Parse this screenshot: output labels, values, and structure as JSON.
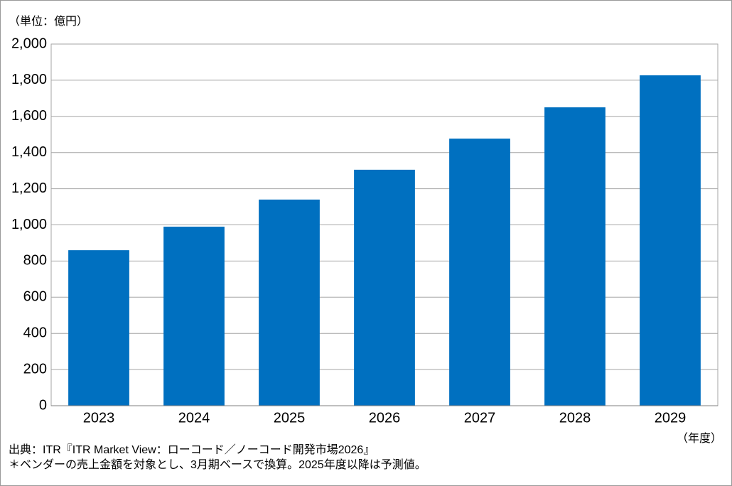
{
  "chart_data": {
    "type": "bar",
    "unit_label": "（単位：億円）",
    "x_unit_label": "（年度）",
    "notes": [
      "出典：ITR『ITR Market View：ローコード／ノーコード開発市場2026』",
      "＊ベンダーの売上金額を対象とし、3月期ベースで換算。2025年度以降は予測値。"
    ],
    "categories": [
      "2023",
      "2024",
      "2025",
      "2026",
      "2027",
      "2028",
      "2029"
    ],
    "values": [
      860,
      990,
      1140,
      1305,
      1477,
      1650,
      1827
    ],
    "color": "#0070c0",
    "ylim": [
      0,
      2000
    ],
    "yticks": [
      0,
      200,
      400,
      600,
      800,
      {
        "value": 1000,
        "label": "1,000"
      },
      {
        "value": 1200,
        "label": "1,200"
      },
      {
        "value": 1400,
        "label": "1,400"
      },
      {
        "value": 1600,
        "label": "1,600"
      },
      {
        "value": 1800,
        "label": "1,800"
      },
      {
        "value": 2000,
        "label": "2,000"
      }
    ],
    "grid": true
  }
}
